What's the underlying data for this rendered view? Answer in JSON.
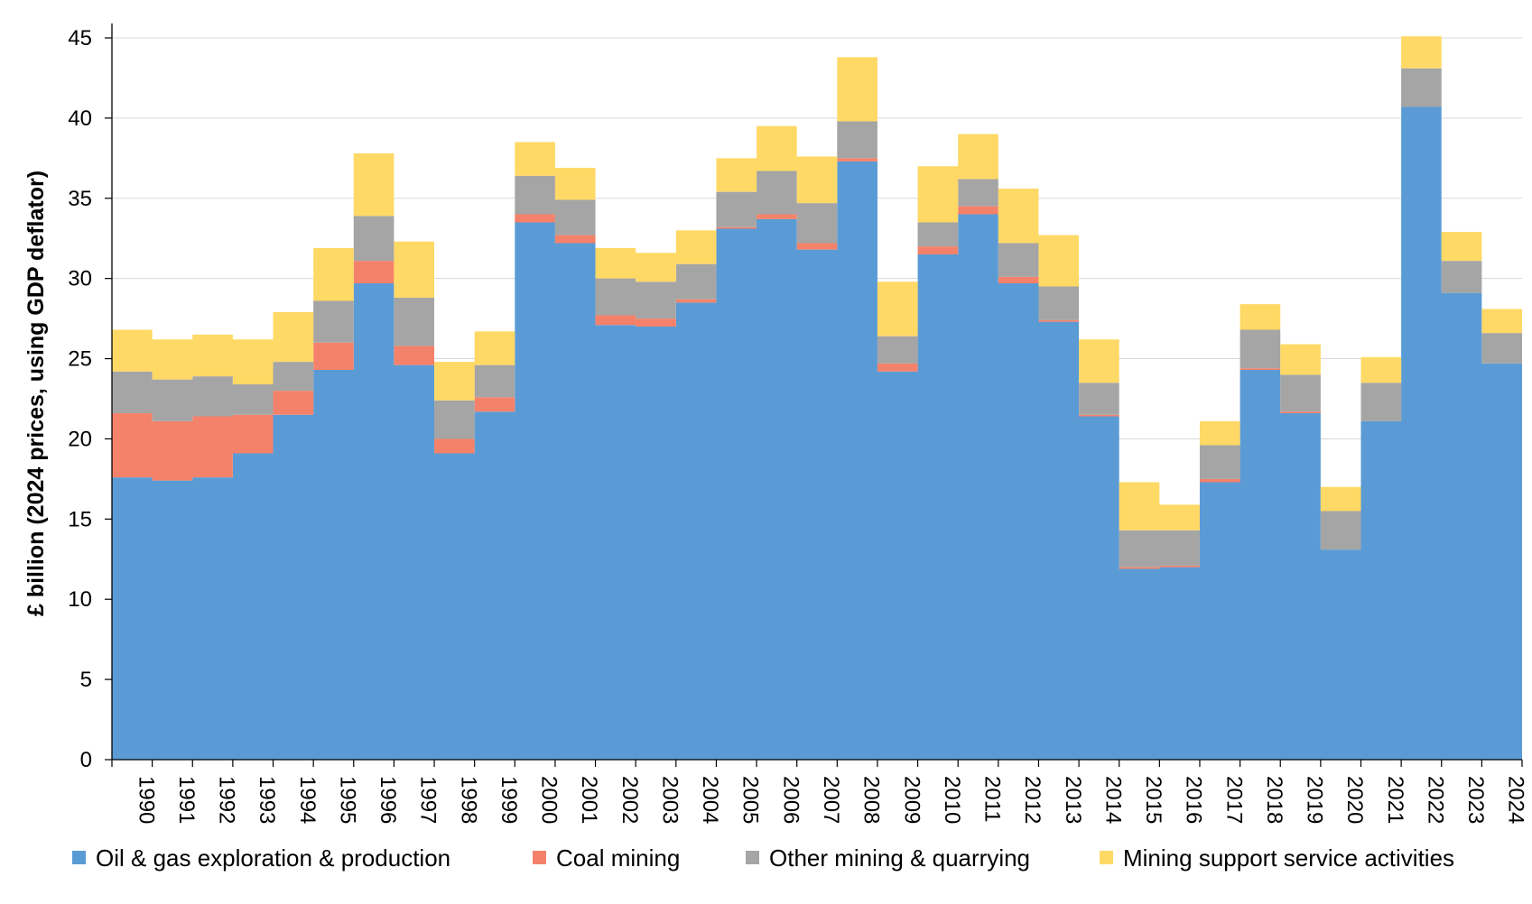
{
  "chart_data": {
    "type": "area",
    "stacked": true,
    "step": true,
    "title": "",
    "xlabel": "",
    "ylabel": "£ billion (2024 prices, using GDP deflator)",
    "ylim": [
      0,
      45
    ],
    "yticks": [
      "0",
      "5",
      "10",
      "15",
      "20",
      "25",
      "30",
      "35",
      "40",
      "45"
    ],
    "grid": true,
    "legend_position": "bottom",
    "categories": [
      "1990",
      "1991",
      "1992",
      "1993",
      "1994",
      "1995",
      "1996",
      "1997",
      "1998",
      "1999",
      "2000",
      "2001",
      "2002",
      "2003",
      "2004",
      "2005",
      "2006",
      "2007",
      "2008",
      "2009",
      "2010",
      "2011",
      "2012",
      "2013",
      "2014",
      "2015",
      "2016",
      "2017",
      "2018",
      "2019",
      "2020",
      "2021",
      "2022",
      "2023",
      "2024"
    ],
    "series": [
      {
        "name": "Oil & gas exploration & production",
        "color": "#5b9bd5",
        "values": [
          17.6,
          17.4,
          17.6,
          19.1,
          21.5,
          24.3,
          29.7,
          24.6,
          19.1,
          21.7,
          33.5,
          32.2,
          27.1,
          27.0,
          28.5,
          33.1,
          33.7,
          31.8,
          37.3,
          24.2,
          31.5,
          34.0,
          29.7,
          27.3,
          21.4,
          11.9,
          12.0,
          17.3,
          24.3,
          21.6,
          13.1,
          21.1,
          40.7,
          29.1,
          24.7
        ]
      },
      {
        "name": "Coal mining",
        "color": "#f4826a",
        "values": [
          4.0,
          3.7,
          3.8,
          2.4,
          1.5,
          1.7,
          1.4,
          1.2,
          0.9,
          0.9,
          0.5,
          0.5,
          0.6,
          0.5,
          0.2,
          0.1,
          0.3,
          0.4,
          0.2,
          0.5,
          0.5,
          0.5,
          0.4,
          0.1,
          0.1,
          0.1,
          0.1,
          0.2,
          0.1,
          0.1,
          0.0,
          0.0,
          0.0,
          0.0,
          0.0
        ]
      },
      {
        "name": "Other mining & quarrying",
        "color": "#a5a5a5",
        "values": [
          2.6,
          2.6,
          2.5,
          1.9,
          1.8,
          2.6,
          2.8,
          3.0,
          2.4,
          2.0,
          2.4,
          2.2,
          2.3,
          2.3,
          2.2,
          2.2,
          2.7,
          2.5,
          2.3,
          1.7,
          1.5,
          1.7,
          2.1,
          2.1,
          2.0,
          2.3,
          2.2,
          2.1,
          2.4,
          2.3,
          2.4,
          2.4,
          2.4,
          2.0,
          1.9
        ]
      },
      {
        "name": "Mining support service activities",
        "color": "#ffd966",
        "values": [
          2.6,
          2.5,
          2.6,
          2.8,
          3.1,
          3.3,
          3.9,
          3.5,
          2.4,
          2.1,
          2.1,
          2.0,
          1.9,
          1.8,
          2.1,
          2.1,
          2.8,
          2.9,
          4.0,
          3.4,
          3.5,
          2.8,
          3.4,
          3.2,
          2.7,
          3.0,
          1.6,
          1.5,
          1.6,
          1.9,
          1.5,
          1.6,
          2.0,
          1.8,
          1.5
        ]
      }
    ]
  }
}
